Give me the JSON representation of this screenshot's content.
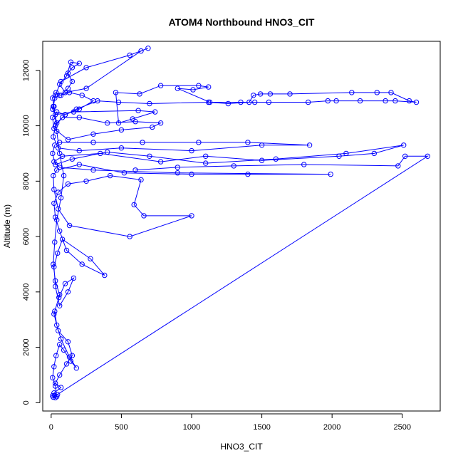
{
  "chart_data": {
    "type": "scatter",
    "title": "ATOM4 Northbound HNO3_CIT",
    "xlabel": "HNO3_CIT",
    "ylabel": "Altitude (m)",
    "xlim": [
      -60,
      2770
    ],
    "ylim": [
      -300,
      13050
    ],
    "x_ticks": [
      0,
      500,
      1000,
      1500,
      2000,
      2500
    ],
    "y_ticks": [
      0,
      2000,
      4000,
      6000,
      8000,
      10000,
      12000
    ],
    "grid": false,
    "legend": "none",
    "colors": {
      "series": "#0000ff"
    },
    "series": [
      {
        "style": "points-and-lines",
        "points": [
          [
            15,
            200
          ],
          [
            25,
            250
          ],
          [
            40,
            220
          ],
          [
            30,
            600
          ],
          [
            10,
            900
          ],
          [
            20,
            1300
          ],
          [
            35,
            1700
          ],
          [
            60,
            2100
          ],
          [
            90,
            1900
          ],
          [
            140,
            1500
          ],
          [
            180,
            1250
          ],
          [
            130,
            1650
          ],
          [
            70,
            2300
          ],
          [
            40,
            2800
          ],
          [
            25,
            3300
          ],
          [
            55,
            3800
          ],
          [
            100,
            4300
          ],
          [
            160,
            4500
          ],
          [
            120,
            4000
          ],
          [
            60,
            3500
          ],
          [
            30,
            4200
          ],
          [
            20,
            4900
          ],
          [
            45,
            5400
          ],
          [
            80,
            5900
          ],
          [
            280,
            5200
          ],
          [
            380,
            4600
          ],
          [
            220,
            5000
          ],
          [
            110,
            5500
          ],
          [
            60,
            6200
          ],
          [
            30,
            6700
          ],
          [
            20,
            7200
          ],
          [
            50,
            7600
          ],
          [
            120,
            7900
          ],
          [
            250,
            8000
          ],
          [
            420,
            8200
          ],
          [
            640,
            8050
          ],
          [
            590,
            7150
          ],
          [
            660,
            6750
          ],
          [
            1000,
            6750
          ],
          [
            560,
            6000
          ],
          [
            130,
            6400
          ],
          [
            50,
            7000
          ],
          [
            20,
            7700
          ],
          [
            15,
            8200
          ],
          [
            40,
            8400
          ],
          [
            200,
            8600
          ],
          [
            520,
            8300
          ],
          [
            1000,
            8250
          ],
          [
            1400,
            8250
          ],
          [
            1990,
            8250
          ],
          [
            900,
            8300
          ],
          [
            300,
            8400
          ],
          [
            60,
            8500
          ],
          [
            20,
            8700
          ],
          [
            80,
            8900
          ],
          [
            350,
            9000
          ],
          [
            780,
            8700
          ],
          [
            1100,
            8900
          ],
          [
            1500,
            8750
          ],
          [
            2050,
            8900
          ],
          [
            2300,
            9000
          ],
          [
            2510,
            9300
          ],
          [
            2100,
            9000
          ],
          [
            1600,
            8800
          ],
          [
            1100,
            8650
          ],
          [
            700,
            8900
          ],
          [
            400,
            9050
          ],
          [
            150,
            8800
          ],
          [
            30,
            8600
          ],
          [
            10,
            9000
          ],
          [
            25,
            9300
          ],
          [
            60,
            9400
          ],
          [
            300,
            9400
          ],
          [
            650,
            9400
          ],
          [
            1050,
            9400
          ],
          [
            1400,
            9400
          ],
          [
            1840,
            9300
          ],
          [
            1500,
            9300
          ],
          [
            1000,
            9100
          ],
          [
            500,
            9200
          ],
          [
            200,
            9100
          ],
          [
            50,
            9200
          ],
          [
            15,
            9600
          ],
          [
            30,
            10000
          ],
          [
            80,
            10300
          ],
          [
            200,
            10300
          ],
          [
            400,
            10100
          ],
          [
            600,
            10150
          ],
          [
            780,
            10100
          ],
          [
            720,
            9950
          ],
          [
            500,
            9850
          ],
          [
            300,
            9700
          ],
          [
            120,
            9500
          ],
          [
            20,
            9900
          ],
          [
            10,
            10300
          ],
          [
            40,
            10500
          ],
          [
            100,
            10400
          ],
          [
            200,
            10600
          ],
          [
            300,
            10900
          ],
          [
            220,
            11100
          ],
          [
            130,
            11200
          ],
          [
            60,
            11100
          ],
          [
            25,
            11000
          ],
          [
            10,
            10600
          ],
          [
            30,
            10400
          ],
          [
            160,
            10500
          ],
          [
            620,
            10550
          ],
          [
            740,
            10500
          ],
          [
            580,
            10250
          ],
          [
            480,
            10100
          ],
          [
            460,
            11200
          ],
          [
            630,
            11150
          ],
          [
            780,
            11450
          ],
          [
            1050,
            11450
          ],
          [
            1120,
            11400
          ],
          [
            1010,
            11300
          ],
          [
            900,
            11350
          ],
          [
            1130,
            10850
          ],
          [
            1350,
            10850
          ],
          [
            1450,
            10850
          ],
          [
            1550,
            10850
          ],
          [
            1830,
            10850
          ],
          [
            1970,
            10900
          ],
          [
            2030,
            10900
          ],
          [
            2200,
            10900
          ],
          [
            2380,
            10900
          ],
          [
            2450,
            10900
          ],
          [
            2600,
            10850
          ],
          [
            2550,
            10900
          ],
          [
            2420,
            11200
          ],
          [
            2320,
            11200
          ],
          [
            2140,
            11200
          ],
          [
            1700,
            11150
          ],
          [
            1560,
            11150
          ],
          [
            1490,
            11150
          ],
          [
            1440,
            11100
          ],
          [
            1410,
            10850
          ],
          [
            1260,
            10800
          ],
          [
            1120,
            10850
          ],
          [
            700,
            10800
          ],
          [
            480,
            10850
          ],
          [
            330,
            10900
          ],
          [
            180,
            10600
          ],
          [
            100,
            10400
          ],
          [
            40,
            10100
          ],
          [
            15,
            10700
          ],
          [
            35,
            11200
          ],
          [
            70,
            11100
          ],
          [
            120,
            11350
          ],
          [
            150,
            11600
          ],
          [
            120,
            11900
          ],
          [
            150,
            12100
          ],
          [
            200,
            12250
          ],
          [
            140,
            12300
          ],
          [
            110,
            11800
          ],
          [
            60,
            11500
          ],
          [
            100,
            11200
          ],
          [
            250,
            11350
          ],
          [
            640,
            12700
          ],
          [
            690,
            12800
          ],
          [
            560,
            12550
          ],
          [
            250,
            12100
          ],
          [
            70,
            11600
          ],
          [
            30,
            11100
          ],
          [
            10,
            11000
          ],
          [
            20,
            10700
          ],
          [
            40,
            9800
          ],
          [
            60,
            9000
          ],
          [
            90,
            8200
          ],
          [
            70,
            7400
          ],
          [
            40,
            6600
          ],
          [
            25,
            5800
          ],
          [
            15,
            5000
          ],
          [
            30,
            4400
          ],
          [
            60,
            3900
          ],
          [
            20,
            3200
          ],
          [
            50,
            2600
          ],
          [
            120,
            2200
          ],
          [
            150,
            1700
          ],
          [
            110,
            1400
          ],
          [
            60,
            1000
          ],
          [
            30,
            700
          ],
          [
            70,
            550
          ],
          [
            20,
            350
          ],
          [
            10,
            250
          ],
          [
            30,
            180
          ],
          [
            45,
            300
          ],
          [
            2680,
            8900
          ],
          [
            2520,
            8900
          ],
          [
            2470,
            8550
          ],
          [
            1800,
            8600
          ],
          [
            1300,
            8550
          ],
          [
            900,
            8500
          ],
          [
            600,
            8400
          ]
        ]
      }
    ]
  }
}
